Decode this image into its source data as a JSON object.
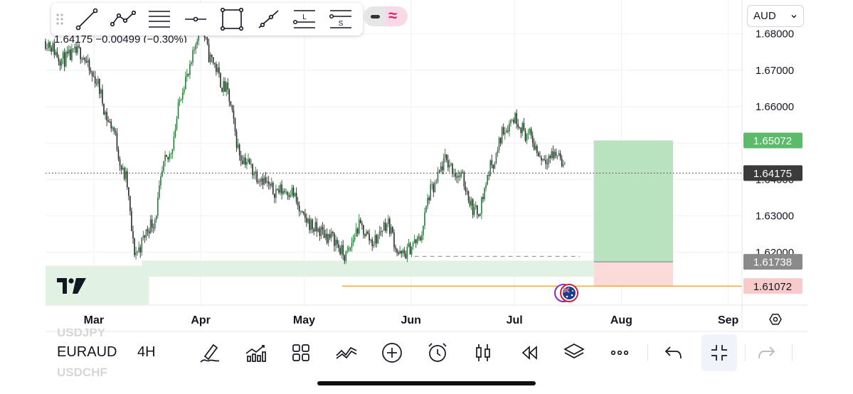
{
  "toolbar": {
    "drag_handle": "drag-handle-icon",
    "tools": [
      "trend-line-icon",
      "polyline-icon",
      "fib-retracement-icon",
      "horizontal-ray-icon",
      "rectangle-icon",
      "ray-icon",
      "long-position-icon",
      "short-position-icon"
    ],
    "long_label": "L",
    "short_label": "S"
  },
  "currency_select": {
    "value": "AUD"
  },
  "ohlc_text": "1.64175  −0.00499 (−0.30%)",
  "symbol": {
    "main": "EURAUD",
    "ghost_above": "USDJPY",
    "ghost_below": "USDCHF"
  },
  "interval": "4H",
  "bottom_bar": [
    "draw-icon",
    "indicators-icon",
    "templates-icon",
    "compare-icon",
    "add-icon",
    "alert-icon",
    "candles-icon",
    "replay-icon",
    "layers-icon",
    "more-icon",
    "undo-icon",
    "collapse-icon",
    "redo-icon"
  ],
  "colors": {
    "up": "#2a7a3b",
    "down": "#2a2a2a",
    "target": "#b9e2bf",
    "stop": "#fbdada",
    "support": "#e1f1e2",
    "orange": "#f5a623"
  },
  "chart_data": {
    "type": "candlestick",
    "symbol": "EURAUD",
    "interval": "4H",
    "x_labels": [
      "Mar",
      "Apr",
      "May",
      "Jun",
      "Jul",
      "Aug",
      "Sep"
    ],
    "y_ticks": [
      "1.68000",
      "1.67000",
      "1.66000",
      "1.65000",
      "1.64000",
      "1.63000",
      "1.62000"
    ],
    "ylim": [
      1.6055,
      1.6893
    ],
    "price_series": {
      "x": [
        "2025-02-15",
        "2025-02-20",
        "2025-02-25",
        "2025-03-01",
        "2025-03-06",
        "2025-03-10",
        "2025-03-13",
        "2025-03-18",
        "2025-03-22",
        "2025-03-28",
        "2025-04-01",
        "2025-04-04",
        "2025-04-08",
        "2025-04-13",
        "2025-04-18",
        "2025-04-22",
        "2025-04-27",
        "2025-05-01",
        "2025-05-05",
        "2025-05-09",
        "2025-05-13",
        "2025-05-17",
        "2025-05-21",
        "2025-05-25",
        "2025-05-29",
        "2025-06-03",
        "2025-06-07",
        "2025-06-11",
        "2025-06-15",
        "2025-06-20",
        "2025-06-25",
        "2025-06-28",
        "2025-07-01",
        "2025-07-05",
        "2025-07-09",
        "2025-07-14",
        "2025-07-16"
      ],
      "close": [
        1.678,
        1.673,
        1.675,
        1.668,
        1.655,
        1.641,
        1.62,
        1.628,
        1.645,
        1.668,
        1.682,
        1.673,
        1.665,
        1.646,
        1.641,
        1.637,
        1.637,
        1.629,
        1.626,
        1.624,
        1.619,
        1.627,
        1.623,
        1.628,
        1.619,
        1.623,
        1.637,
        1.645,
        1.641,
        1.631,
        1.645,
        1.654,
        1.657,
        1.652,
        1.646,
        1.647,
        1.642
      ]
    },
    "last_price": "1.64175",
    "price_labels": [
      {
        "value": "1.65072",
        "kind": "target"
      },
      {
        "value": "1.64175",
        "kind": "last"
      },
      {
        "value": "1.61738",
        "kind": "entry"
      },
      {
        "value": "1.61072",
        "kind": "stop"
      }
    ],
    "position": {
      "type": "long",
      "entry": 1.61738,
      "target": 1.65072,
      "stop": 1.61072,
      "x_start": "2025-07-24",
      "x_end": "2025-08-16"
    },
    "zones": [
      {
        "type": "support",
        "from": "2025-03-15",
        "to": "2025-07-24",
        "low": 1.6133,
        "high": 1.6177
      },
      {
        "type": "support",
        "from": "2025-02-15",
        "to": "2025-03-17",
        "low": 1.6055,
        "high": 1.6163
      }
    ],
    "levels": [
      {
        "value": 1.6107,
        "from": "2025-05-12",
        "to": "2025-09-05",
        "style": "solid",
        "color": "orange"
      },
      {
        "value": 1.6189,
        "from": "2025-06-02",
        "to": "2025-07-20",
        "style": "dashed",
        "color": "gray"
      }
    ],
    "grid": true
  }
}
